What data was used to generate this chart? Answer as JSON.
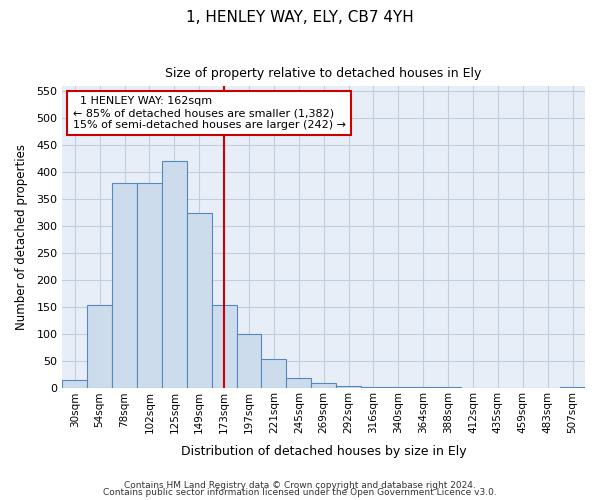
{
  "title": "1, HENLEY WAY, ELY, CB7 4YH",
  "subtitle": "Size of property relative to detached houses in Ely",
  "xlabel": "Distribution of detached houses by size in Ely",
  "ylabel": "Number of detached properties",
  "footnote1": "Contains HM Land Registry data © Crown copyright and database right 2024.",
  "footnote2": "Contains public sector information licensed under the Open Government Licence v3.0.",
  "bar_color": "#ccdcec",
  "bar_edge_color": "#5588bb",
  "grid_color": "#c0cfe0",
  "background_color": "#e8eef8",
  "vline_color": "#cc0000",
  "vline_x": 6.0,
  "annotation_text": "  1 HENLEY WAY: 162sqm  \n← 85% of detached houses are smaller (1,382)\n15% of semi-detached houses are larger (242) →",
  "categories": [
    "30sqm",
    "54sqm",
    "78sqm",
    "102sqm",
    "125sqm",
    "149sqm",
    "173sqm",
    "197sqm",
    "221sqm",
    "245sqm",
    "269sqm",
    "292sqm",
    "316sqm",
    "340sqm",
    "364sqm",
    "388sqm",
    "412sqm",
    "435sqm",
    "459sqm",
    "483sqm",
    "507sqm"
  ],
  "values": [
    15,
    155,
    380,
    380,
    420,
    325,
    155,
    100,
    55,
    20,
    10,
    5,
    3,
    3,
    2,
    2,
    0,
    1,
    0,
    1,
    2
  ],
  "ylim": [
    0,
    560
  ],
  "yticks": [
    0,
    50,
    100,
    150,
    200,
    250,
    300,
    350,
    400,
    450,
    500,
    550
  ],
  "figsize": [
    6.0,
    5.0
  ],
  "dpi": 100
}
